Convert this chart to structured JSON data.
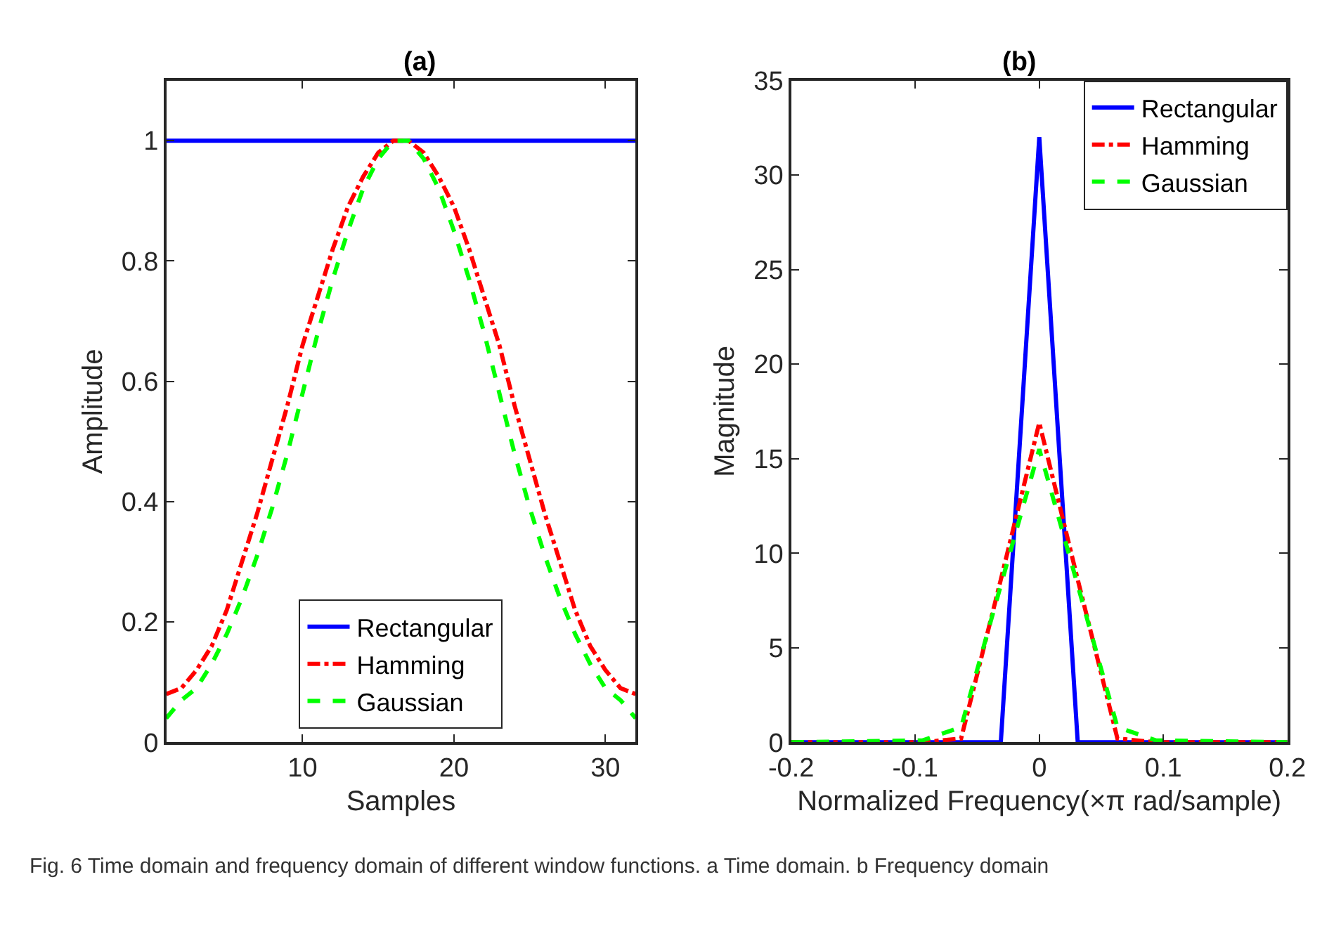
{
  "chart_data": [
    {
      "type": "line",
      "title": "(a)",
      "xlabel": "Samples",
      "ylabel": "Amplitude",
      "xlim": [
        1,
        32
      ],
      "xticks": [
        10,
        20,
        30
      ],
      "ylim": [
        0,
        1.1
      ],
      "yticks": [
        0,
        0.2,
        0.4,
        0.6,
        0.8,
        1
      ],
      "legend": "bottom",
      "series": [
        {
          "name": "Rectangular",
          "color": "#0000ff",
          "line_style": "solid",
          "x": [
            1,
            32
          ],
          "values": [
            1,
            1
          ]
        },
        {
          "name": "Hamming",
          "color": "#ff0000",
          "line_style": "dashdot",
          "x": [
            1,
            2,
            3,
            4,
            5,
            6,
            7,
            8,
            9,
            10,
            11,
            12,
            13,
            14,
            15,
            16,
            17,
            18,
            19,
            20,
            21,
            22,
            23,
            24,
            25,
            26,
            27,
            28,
            29,
            30,
            31,
            32
          ],
          "values": [
            0.08,
            0.09,
            0.12,
            0.16,
            0.22,
            0.3,
            0.38,
            0.47,
            0.56,
            0.66,
            0.74,
            0.82,
            0.89,
            0.94,
            0.98,
            1.0,
            1.0,
            0.98,
            0.94,
            0.89,
            0.82,
            0.74,
            0.66,
            0.56,
            0.47,
            0.38,
            0.3,
            0.22,
            0.16,
            0.12,
            0.09,
            0.08
          ]
        },
        {
          "name": "Gaussian",
          "color": "#00ff00",
          "line_style": "dashed",
          "x": [
            1,
            2,
            3,
            4,
            5,
            6,
            7,
            8,
            9,
            10,
            11,
            12,
            13,
            14,
            15,
            16,
            17,
            18,
            19,
            20,
            21,
            22,
            23,
            24,
            25,
            26,
            27,
            28,
            29,
            30,
            31,
            32
          ],
          "values": [
            0.04,
            0.07,
            0.09,
            0.13,
            0.18,
            0.24,
            0.31,
            0.39,
            0.48,
            0.58,
            0.68,
            0.77,
            0.85,
            0.92,
            0.97,
            1.0,
            1.0,
            0.97,
            0.92,
            0.85,
            0.77,
            0.68,
            0.58,
            0.48,
            0.39,
            0.31,
            0.24,
            0.18,
            0.13,
            0.09,
            0.07,
            0.04
          ]
        }
      ],
      "annotations": [
        "Fig. 6 Time domain and frequency domain of different window functions. a Time domain. b Frequency domain"
      ]
    },
    {
      "type": "line",
      "title": "(b)",
      "xlabel": "Normalized Frequency(×π rad/sample)",
      "ylabel": "Magnitude",
      "xlim": [
        -0.2,
        0.2
      ],
      "xticks": [
        -0.2,
        -0.1,
        0,
        0.1,
        0.2
      ],
      "ylim": [
        0,
        35
      ],
      "yticks": [
        0,
        5,
        10,
        15,
        20,
        25,
        30,
        35
      ],
      "legend": "top right",
      "series": [
        {
          "name": "Rectangular",
          "color": "#0000ff",
          "line_style": "solid",
          "x": [
            -0.2,
            -0.031,
            0,
            0.031,
            0.2
          ],
          "values": [
            0,
            0,
            32,
            0,
            0
          ]
        },
        {
          "name": "Hamming",
          "color": "#ff0000",
          "line_style": "dashdot",
          "x": [
            -0.2,
            -0.094,
            -0.063,
            -0.031,
            0,
            0.031,
            0.063,
            0.094,
            0.2
          ],
          "values": [
            0,
            0,
            0.2,
            8.6,
            16.9,
            8.6,
            0.2,
            0,
            0
          ]
        },
        {
          "name": "Gaussian",
          "color": "#00ff00",
          "line_style": "dashed",
          "x": [
            -0.2,
            -0.094,
            -0.063,
            -0.031,
            0,
            0.031,
            0.063,
            0.094,
            0.2
          ],
          "values": [
            0,
            0.1,
            0.8,
            8.3,
            15.5,
            8.3,
            0.8,
            0.1,
            0
          ]
        }
      ]
    }
  ]
}
